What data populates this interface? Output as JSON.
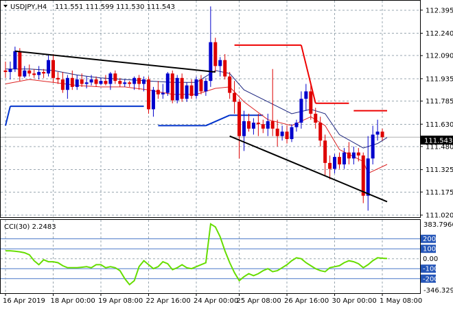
{
  "main_chart": {
    "header_symbol": "USDJPY,H4",
    "header_ohlc": "111.551 111.599 111.530 111.543",
    "price_ticks": [
      "112.395",
      "112.240",
      "112.090",
      "111.935",
      "111.785",
      "111.630",
      "111.480",
      "111.325",
      "111.175",
      "111.020"
    ],
    "current_price_label": "111.543",
    "colors": {
      "bull_candle": "#0000cc",
      "bear_candle": "#dd0000",
      "ma_fast": "#1a237e",
      "ma_slow": "#dd2222",
      "resistance_levels": "#ee0000",
      "support_levels": "#0033cc",
      "trendlines": "#000000",
      "cci_line": "#66dd00"
    }
  },
  "cci_panel": {
    "label": "CCI(30) 2.2483",
    "axis_top": "383.7966",
    "axis_bottom": "-346.3299",
    "levels": [
      "200",
      "100",
      "0.00",
      "-100",
      "-200"
    ]
  },
  "time_axis": {
    "labels": [
      "16 Apr 2019",
      "18 Apr 00:00",
      "19 Apr 08:00",
      "22 Apr 16:00",
      "24 Apr 00:00",
      "25 Apr 08:00",
      "26 Apr 16:00",
      "30 Apr 00:00",
      "1 May 08:00"
    ]
  },
  "chart_data": {
    "type": "candlestick",
    "symbol": "USDJPY",
    "timeframe": "H4",
    "ylim": [
      111.02,
      112.44
    ],
    "candles": [
      {
        "o": 111.99,
        "h": 112.05,
        "l": 111.94,
        "c": 111.98
      },
      {
        "o": 111.98,
        "h": 112.05,
        "l": 111.93,
        "c": 112.0
      },
      {
        "o": 112.0,
        "h": 112.15,
        "l": 111.98,
        "c": 112.12
      },
      {
        "o": 112.12,
        "h": 112.14,
        "l": 111.92,
        "c": 111.95
      },
      {
        "o": 111.95,
        "h": 112.02,
        "l": 111.94,
        "c": 111.99
      },
      {
        "o": 111.99,
        "h": 112.03,
        "l": 111.95,
        "c": 111.97
      },
      {
        "o": 111.97,
        "h": 112.0,
        "l": 111.94,
        "c": 111.96
      },
      {
        "o": 111.96,
        "h": 112.02,
        "l": 111.93,
        "c": 111.98
      },
      {
        "o": 111.98,
        "h": 112.0,
        "l": 111.94,
        "c": 111.97
      },
      {
        "o": 111.97,
        "h": 112.1,
        "l": 111.95,
        "c": 112.06
      },
      {
        "o": 112.06,
        "h": 112.1,
        "l": 111.91,
        "c": 111.94
      },
      {
        "o": 111.94,
        "h": 111.98,
        "l": 111.9,
        "c": 111.93
      },
      {
        "o": 111.93,
        "h": 111.98,
        "l": 111.84,
        "c": 111.86
      },
      {
        "o": 111.86,
        "h": 111.96,
        "l": 111.8,
        "c": 111.94
      },
      {
        "o": 111.94,
        "h": 111.99,
        "l": 111.86,
        "c": 111.88
      },
      {
        "o": 111.88,
        "h": 111.96,
        "l": 111.86,
        "c": 111.93
      },
      {
        "o": 111.93,
        "h": 111.97,
        "l": 111.88,
        "c": 111.9
      },
      {
        "o": 111.9,
        "h": 111.95,
        "l": 111.87,
        "c": 111.91
      },
      {
        "o": 111.91,
        "h": 111.96,
        "l": 111.89,
        "c": 111.93
      },
      {
        "o": 111.93,
        "h": 111.95,
        "l": 111.88,
        "c": 111.9
      },
      {
        "o": 111.9,
        "h": 111.94,
        "l": 111.89,
        "c": 111.92
      },
      {
        "o": 111.92,
        "h": 111.96,
        "l": 111.89,
        "c": 111.9
      },
      {
        "o": 111.9,
        "h": 111.98,
        "l": 111.86,
        "c": 111.97
      },
      {
        "o": 111.97,
        "h": 111.99,
        "l": 111.9,
        "c": 111.92
      },
      {
        "o": 111.92,
        "h": 111.94,
        "l": 111.88,
        "c": 111.9
      },
      {
        "o": 111.9,
        "h": 111.93,
        "l": 111.88,
        "c": 111.91
      },
      {
        "o": 111.91,
        "h": 111.92,
        "l": 111.88,
        "c": 111.9
      },
      {
        "o": 111.9,
        "h": 111.95,
        "l": 111.86,
        "c": 111.94
      },
      {
        "o": 111.94,
        "h": 111.96,
        "l": 111.86,
        "c": 111.9
      },
      {
        "o": 111.9,
        "h": 111.95,
        "l": 111.85,
        "c": 111.93
      },
      {
        "o": 111.93,
        "h": 111.95,
        "l": 111.7,
        "c": 111.73
      },
      {
        "o": 111.73,
        "h": 111.88,
        "l": 111.68,
        "c": 111.86
      },
      {
        "o": 111.86,
        "h": 111.92,
        "l": 111.8,
        "c": 111.83
      },
      {
        "o": 111.83,
        "h": 111.9,
        "l": 111.8,
        "c": 111.84
      },
      {
        "o": 111.84,
        "h": 111.98,
        "l": 111.82,
        "c": 111.97
      },
      {
        "o": 111.97,
        "h": 111.99,
        "l": 111.77,
        "c": 111.79
      },
      {
        "o": 111.79,
        "h": 111.96,
        "l": 111.77,
        "c": 111.94
      },
      {
        "o": 111.94,
        "h": 111.97,
        "l": 111.78,
        "c": 111.8
      },
      {
        "o": 111.8,
        "h": 111.91,
        "l": 111.78,
        "c": 111.89
      },
      {
        "o": 111.89,
        "h": 111.93,
        "l": 111.8,
        "c": 111.82
      },
      {
        "o": 111.82,
        "h": 111.95,
        "l": 111.8,
        "c": 111.93
      },
      {
        "o": 111.93,
        "h": 111.96,
        "l": 111.83,
        "c": 111.85
      },
      {
        "o": 111.85,
        "h": 111.94,
        "l": 111.82,
        "c": 111.92
      },
      {
        "o": 111.92,
        "h": 112.42,
        "l": 111.88,
        "c": 112.18
      },
      {
        "o": 112.18,
        "h": 112.21,
        "l": 111.98,
        "c": 112.02
      },
      {
        "o": 112.02,
        "h": 112.08,
        "l": 111.95,
        "c": 112.06
      },
      {
        "o": 112.06,
        "h": 112.1,
        "l": 111.93,
        "c": 111.95
      },
      {
        "o": 111.95,
        "h": 111.98,
        "l": 111.8,
        "c": 111.84
      },
      {
        "o": 111.84,
        "h": 111.92,
        "l": 111.7,
        "c": 111.78
      },
      {
        "o": 111.78,
        "h": 111.8,
        "l": 111.4,
        "c": 111.55
      },
      {
        "o": 111.55,
        "h": 111.72,
        "l": 111.45,
        "c": 111.65
      },
      {
        "o": 111.65,
        "h": 111.7,
        "l": 111.58,
        "c": 111.6
      },
      {
        "o": 111.6,
        "h": 111.67,
        "l": 111.56,
        "c": 111.64
      },
      {
        "o": 111.64,
        "h": 111.7,
        "l": 111.55,
        "c": 111.63
      },
      {
        "o": 111.63,
        "h": 111.66,
        "l": 111.57,
        "c": 111.6
      },
      {
        "o": 111.6,
        "h": 111.7,
        "l": 111.55,
        "c": 111.65
      },
      {
        "o": 111.65,
        "h": 112.0,
        "l": 111.55,
        "c": 111.6
      },
      {
        "o": 111.6,
        "h": 111.66,
        "l": 111.48,
        "c": 111.55
      },
      {
        "o": 111.55,
        "h": 111.62,
        "l": 111.52,
        "c": 111.58
      },
      {
        "o": 111.58,
        "h": 111.62,
        "l": 111.5,
        "c": 111.53
      },
      {
        "o": 111.53,
        "h": 111.63,
        "l": 111.51,
        "c": 111.61
      },
      {
        "o": 111.61,
        "h": 111.66,
        "l": 111.58,
        "c": 111.64
      },
      {
        "o": 111.64,
        "h": 111.85,
        "l": 111.6,
        "c": 111.8
      },
      {
        "o": 111.8,
        "h": 111.9,
        "l": 111.72,
        "c": 111.85
      },
      {
        "o": 111.85,
        "h": 111.89,
        "l": 111.66,
        "c": 111.7
      },
      {
        "o": 111.7,
        "h": 111.74,
        "l": 111.6,
        "c": 111.64
      },
      {
        "o": 111.64,
        "h": 111.68,
        "l": 111.48,
        "c": 111.52
      },
      {
        "o": 111.52,
        "h": 111.56,
        "l": 111.28,
        "c": 111.37
      },
      {
        "o": 111.37,
        "h": 111.42,
        "l": 111.26,
        "c": 111.33
      },
      {
        "o": 111.33,
        "h": 111.43,
        "l": 111.3,
        "c": 111.41
      },
      {
        "o": 111.41,
        "h": 111.44,
        "l": 111.33,
        "c": 111.36
      },
      {
        "o": 111.36,
        "h": 111.47,
        "l": 111.33,
        "c": 111.44
      },
      {
        "o": 111.44,
        "h": 111.51,
        "l": 111.36,
        "c": 111.4
      },
      {
        "o": 111.4,
        "h": 111.48,
        "l": 111.36,
        "c": 111.44
      },
      {
        "o": 111.44,
        "h": 111.47,
        "l": 111.38,
        "c": 111.42
      },
      {
        "o": 111.42,
        "h": 111.44,
        "l": 111.1,
        "c": 111.15
      },
      {
        "o": 111.15,
        "h": 111.55,
        "l": 111.05,
        "c": 111.4
      },
      {
        "o": 111.4,
        "h": 111.62,
        "l": 111.36,
        "c": 111.56
      },
      {
        "o": 111.56,
        "h": 111.66,
        "l": 111.52,
        "c": 111.58
      },
      {
        "o": 111.58,
        "h": 111.6,
        "l": 111.52,
        "c": 111.543
      }
    ],
    "ma_fast": [
      [
        0,
        112.0
      ],
      [
        5,
        112.0
      ],
      [
        10,
        111.99
      ],
      [
        15,
        111.96
      ],
      [
        20,
        111.94
      ],
      [
        25,
        111.93
      ],
      [
        30,
        111.92
      ],
      [
        35,
        111.91
      ],
      [
        40,
        111.91
      ],
      [
        44,
        111.99
      ],
      [
        47,
        111.97
      ],
      [
        50,
        111.86
      ],
      [
        55,
        111.78
      ],
      [
        60,
        111.7
      ],
      [
        64,
        111.73
      ],
      [
        67,
        111.7
      ],
      [
        70,
        111.56
      ],
      [
        75,
        111.47
      ],
      [
        78,
        111.5
      ],
      [
        80,
        111.54
      ]
    ],
    "ma_slow": [
      [
        0,
        111.9
      ],
      [
        5,
        111.93
      ],
      [
        10,
        111.91
      ],
      [
        15,
        111.89
      ],
      [
        20,
        111.88
      ],
      [
        25,
        111.88
      ],
      [
        30,
        111.86
      ],
      [
        35,
        111.83
      ],
      [
        40,
        111.83
      ],
      [
        44,
        111.87
      ],
      [
        47,
        111.88
      ],
      [
        50,
        111.78
      ],
      [
        55,
        111.66
      ],
      [
        60,
        111.62
      ],
      [
        64,
        111.68
      ],
      [
        67,
        111.62
      ],
      [
        70,
        111.46
      ],
      [
        75,
        111.38
      ],
      [
        76,
        111.3
      ],
      [
        80,
        111.36
      ]
    ],
    "resistance_levels": [
      {
        "from": 48,
        "to": 62,
        "value": 112.16
      },
      {
        "from": 62,
        "to": 65,
        "value": 112.16,
        "to_value": 111.77
      },
      {
        "from": 65,
        "to": 72,
        "value": 111.77
      },
      {
        "from": 73,
        "to": 80,
        "value": 111.72
      }
    ],
    "support_levels": [
      {
        "from": 0,
        "to": 1,
        "value": 111.62,
        "to_value": 111.75
      },
      {
        "from": 1,
        "to": 29,
        "value": 111.75
      },
      {
        "from": 32,
        "to": 42,
        "value": 111.62
      },
      {
        "from": 42,
        "to": 47,
        "value": 111.62,
        "to_value": 111.69
      },
      {
        "from": 47,
        "to": 54,
        "value": 111.69
      }
    ],
    "trendlines": [
      {
        "x1": 2,
        "y1": 112.12,
        "x2": 44,
        "y2": 111.98
      },
      {
        "x1": 47,
        "y1": 111.55,
        "x2": 80,
        "y2": 111.11
      }
    ],
    "cci": {
      "name": "CCI(30)",
      "ylim": [
        -346.33,
        383.8
      ],
      "levels": [
        200,
        100,
        0,
        -100,
        -200
      ],
      "values": [
        80,
        80,
        75,
        70,
        60,
        40,
        -20,
        -60,
        -10,
        -30,
        -30,
        -40,
        -70,
        -90,
        -90,
        -90,
        -85,
        -80,
        -90,
        -60,
        -60,
        -90,
        -80,
        -90,
        -120,
        -200,
        -260,
        -220,
        -80,
        -20,
        -60,
        -100,
        -80,
        -30,
        -50,
        -110,
        -90,
        -60,
        -90,
        -100,
        -80,
        -60,
        -40,
        350,
        320,
        220,
        80,
        -40,
        -140,
        -220,
        -180,
        -150,
        -170,
        -150,
        -120,
        -100,
        -130,
        -120,
        -90,
        -60,
        -20,
        10,
        0,
        -40,
        -70,
        -100,
        -120,
        -130,
        -90,
        -80,
        -70,
        -40,
        -20,
        -30,
        -50,
        -90,
        -60,
        -20,
        10,
        5,
        2.2483
      ]
    }
  }
}
